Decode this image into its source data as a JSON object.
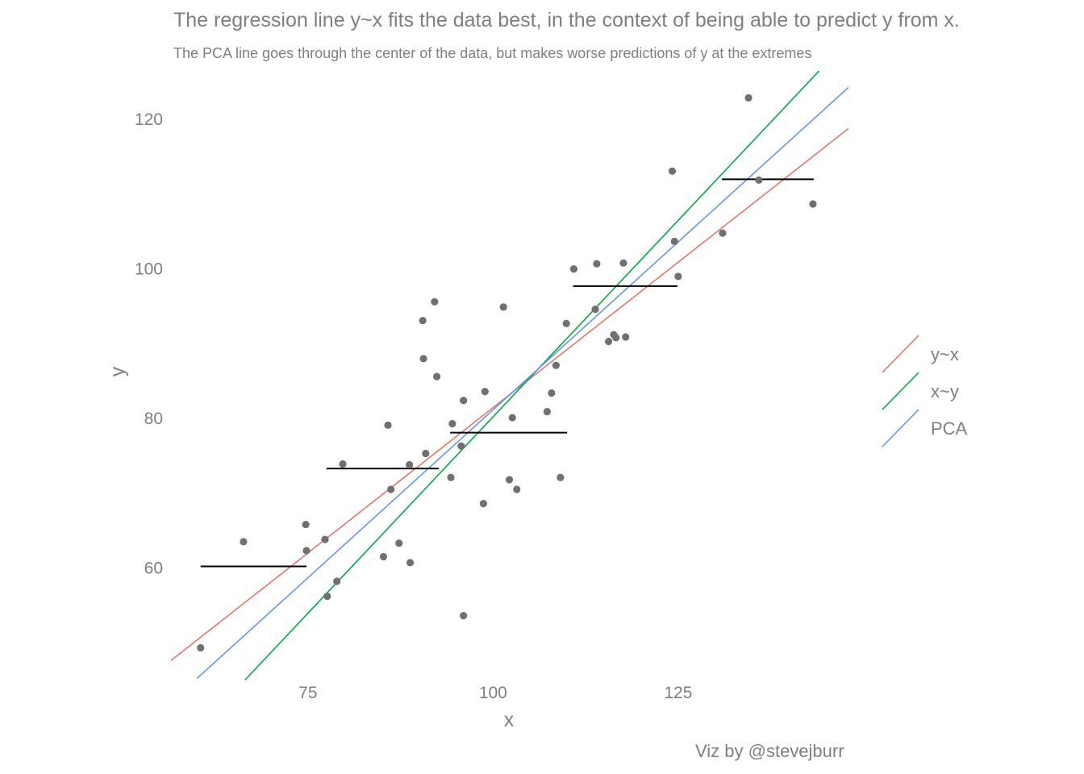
{
  "chart_data": {
    "type": "scatter",
    "title": "The regression line y~x fits the data best, in the context of being able to predict y from x.",
    "subtitle": "The PCA line goes through the center of the data, but makes worse predictions of y at the extremes",
    "caption": "Viz by @stevejburr",
    "xlabel": "x",
    "ylabel": "y",
    "xlim": [
      56.5,
      148
    ],
    "ylim": [
      44.5,
      126.5
    ],
    "x_ticks": [
      75,
      100,
      125
    ],
    "x_tick_labels": [
      "75",
      "100",
      "125"
    ],
    "y_ticks": [
      60,
      80,
      100,
      120
    ],
    "y_tick_labels": [
      "60",
      "80",
      "100",
      "120"
    ],
    "grid": false,
    "legend_position": "right",
    "points": [
      [
        60.5,
        49.3
      ],
      [
        66.3,
        63.5
      ],
      [
        74.7,
        65.8
      ],
      [
        74.8,
        62.3
      ],
      [
        77.3,
        63.8
      ],
      [
        77.6,
        56.2
      ],
      [
        78.9,
        58.2
      ],
      [
        79.7,
        73.9
      ],
      [
        85.2,
        61.5
      ],
      [
        85.8,
        79.1
      ],
      [
        86.2,
        70.5
      ],
      [
        87.3,
        63.3
      ],
      [
        88.7,
        73.8
      ],
      [
        88.8,
        60.7
      ],
      [
        90.5,
        93.1
      ],
      [
        90.6,
        88.0
      ],
      [
        90.9,
        75.3
      ],
      [
        92.1,
        95.6
      ],
      [
        92.4,
        85.6
      ],
      [
        94.3,
        72.1
      ],
      [
        94.5,
        79.3
      ],
      [
        95.7,
        76.3
      ],
      [
        96.0,
        82.4
      ],
      [
        96.0,
        53.6
      ],
      [
        98.7,
        68.6
      ],
      [
        98.9,
        83.6
      ],
      [
        101.4,
        94.9
      ],
      [
        102.2,
        71.8
      ],
      [
        102.6,
        80.1
      ],
      [
        103.2,
        70.5
      ],
      [
        107.3,
        80.9
      ],
      [
        107.9,
        83.4
      ],
      [
        108.5,
        87.1
      ],
      [
        109.1,
        72.1
      ],
      [
        109.9,
        92.7
      ],
      [
        110.9,
        100.0
      ],
      [
        113.8,
        94.6
      ],
      [
        114.0,
        100.7
      ],
      [
        115.6,
        90.3
      ],
      [
        116.3,
        91.2
      ],
      [
        116.6,
        90.8
      ],
      [
        117.6,
        100.8
      ],
      [
        117.9,
        90.9
      ],
      [
        124.2,
        113.1
      ],
      [
        124.5,
        103.7
      ],
      [
        125.0,
        99.0
      ],
      [
        131.0,
        104.8
      ],
      [
        134.5,
        122.9
      ],
      [
        135.9,
        111.9
      ],
      [
        143.2,
        108.7
      ]
    ],
    "series": [
      {
        "name": "y~x",
        "color": "#E8736A",
        "x": [
          56.5,
          148.0
        ],
        "y": [
          47.6,
          118.8
        ]
      },
      {
        "name": "x~y",
        "color": "#00A940",
        "x": [
          66.5,
          144.5
        ],
        "y": [
          45.0,
          127.0
        ]
      },
      {
        "name": "PCA",
        "color": "#6495ED",
        "x": [
          60.0,
          148.0
        ],
        "y": [
          45.2,
          124.3
        ]
      }
    ],
    "bin_means": [
      {
        "x": [
          60.5,
          74.8
        ],
        "y": 60.2
      },
      {
        "x": [
          77.5,
          92.7
        ],
        "y": 73.3
      },
      {
        "x": [
          94.2,
          110.0
        ],
        "y": 78.1
      },
      {
        "x": [
          110.8,
          124.9
        ],
        "y": 97.7
      },
      {
        "x": [
          130.9,
          143.3
        ],
        "y": 112.0
      }
    ],
    "point_color": "#707070",
    "bin_mean_color": "#000000"
  }
}
